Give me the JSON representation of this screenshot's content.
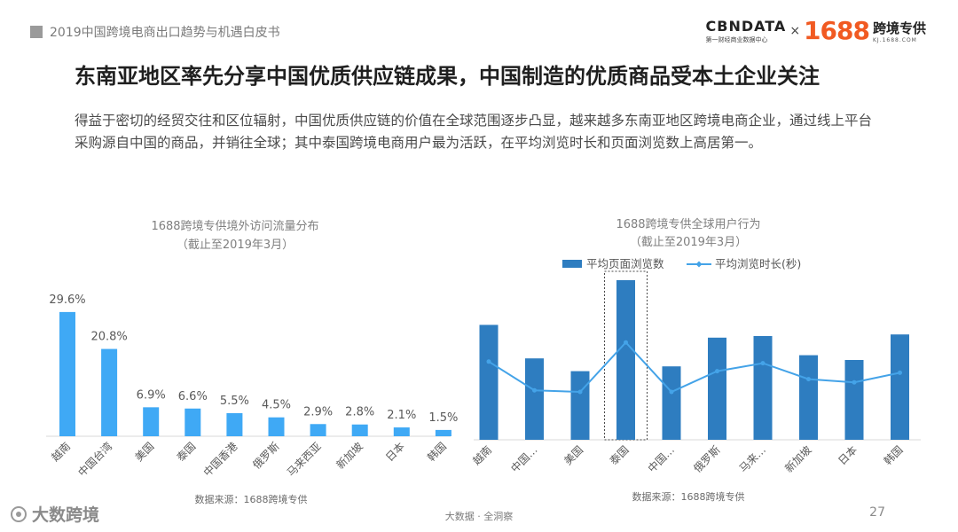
{
  "header": {
    "doc_title": "2019中国跨境电商出口趋势与机遇白皮书",
    "brand": {
      "cbn_name": "CBNDATA",
      "cbn_sub": "第一财经商业数据中心",
      "times": "×",
      "num": "1688",
      "zg_name": "跨境专供",
      "zg_sub": "KJ.1688.COM"
    }
  },
  "page_title": "东南亚地区率先分享中国优质供应链成果，中国制造的优质商品受本土企业关注",
  "intro": "得益于密切的经贸交往和区位辐射，中国优质供应链的价值在全球范围逐步凸显，越来越多东南亚地区跨境电商企业，通过线上平台采购源自中国的商品，并销往全球；其中泰国跨境电商用户最为活跃，在平均浏览时长和页面浏览数上高居第一。",
  "colors": {
    "bar_left": "#3fa9f5",
    "bar_right": "#2e7dc0",
    "line": "#44a3e8"
  },
  "chart_data": [
    {
      "type": "bar",
      "title": "1688跨境专供境外访问流量分布",
      "subtitle": "（截止至2019年3月）",
      "categories": [
        "越南",
        "中国台湾",
        "美国",
        "泰国",
        "中国香港",
        "俄罗斯",
        "马来西亚",
        "新加坡",
        "日本",
        "韩国"
      ],
      "values": [
        29.6,
        20.8,
        6.9,
        6.6,
        5.5,
        4.5,
        2.9,
        2.8,
        2.1,
        1.5
      ],
      "value_labels": [
        "29.6%",
        "20.8%",
        "6.9%",
        "6.6%",
        "5.5%",
        "4.5%",
        "2.9%",
        "2.8%",
        "2.1%",
        "1.5%"
      ],
      "ylim": [
        0,
        30
      ],
      "source": "数据来源：1688跨境专供"
    },
    {
      "type": "bar",
      "title": "1688跨境专供全球用户行为",
      "subtitle": "（截止至2019年3月）",
      "categories": [
        "越南",
        "中国…",
        "美国",
        "泰国",
        "中国…",
        "俄罗斯",
        "马来…",
        "新加坡",
        "日本",
        "韩国"
      ],
      "series": [
        {
          "name": "平均页面浏览数",
          "type": "bar",
          "values": [
            72,
            51,
            43,
            100,
            46,
            64,
            65,
            53,
            50,
            66
          ]
        },
        {
          "name": "平均浏览时长(秒)",
          "type": "line",
          "values": [
            49,
            31,
            30,
            61,
            30,
            43,
            48,
            38,
            36,
            42
          ]
        }
      ],
      "ylim": [
        0,
        100
      ],
      "highlight": "泰国",
      "source": "数据来源：1688跨境专供"
    }
  ],
  "footer": {
    "logo_text": "大数跨境",
    "center": "大数据 · 全洞察",
    "page": "27"
  }
}
